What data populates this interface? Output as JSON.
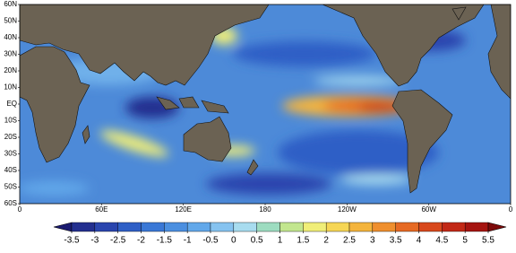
{
  "map": {
    "lat_labels": [
      "60N",
      "50N",
      "40N",
      "30N",
      "20N",
      "10N",
      "EQ",
      "10S",
      "20S",
      "30S",
      "40S",
      "50S",
      "60S"
    ],
    "lon_labels": [
      "0",
      "60E",
      "120E",
      "180",
      "120W",
      "60W",
      "0"
    ]
  },
  "colorbar": {
    "ticks": [
      -3.5,
      -3,
      -2.5,
      -2,
      -1.5,
      -1,
      -0.5,
      0,
      0.5,
      1,
      1.5,
      2,
      2.5,
      3,
      3.5,
      4,
      4.5,
      5,
      5.5
    ],
    "colors": [
      "#1a1a70",
      "#232f8f",
      "#2a45ae",
      "#2f5fc6",
      "#3a78d6",
      "#4b8fe0",
      "#62a8ea",
      "#86c3f0",
      "#a8dcef",
      "#9ddcc0",
      "#c2e68e",
      "#f0ee78",
      "#f6d655",
      "#f4b43c",
      "#ef8f2e",
      "#e66a24",
      "#d8481c",
      "#c22816",
      "#a51410",
      "#7d0a0a"
    ]
  }
}
